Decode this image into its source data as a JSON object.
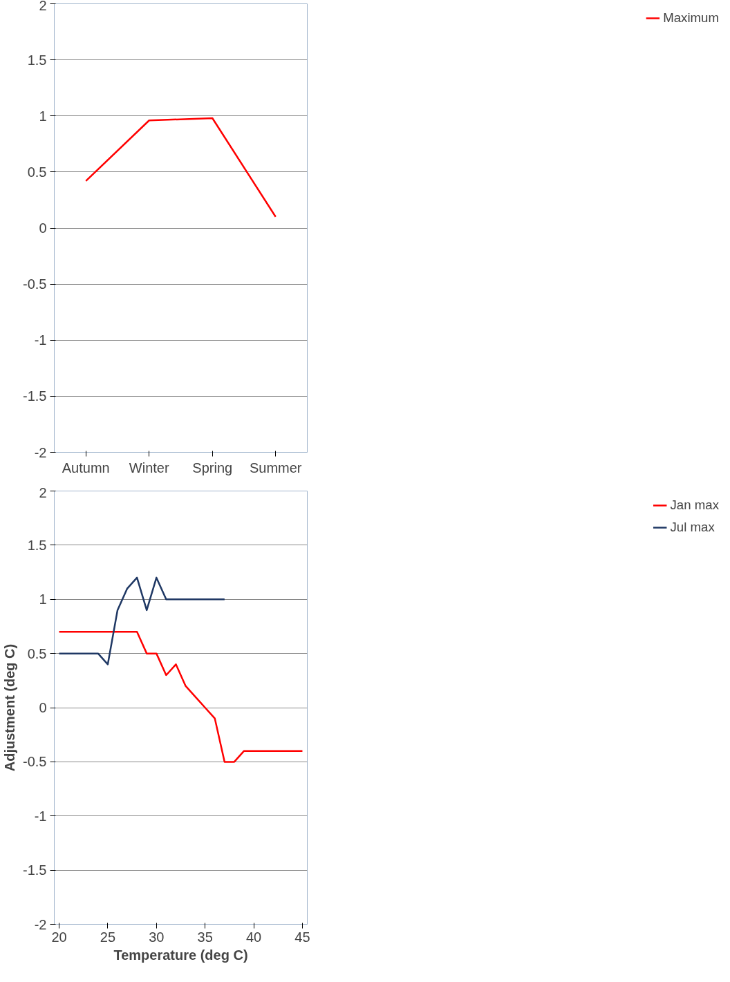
{
  "chart_data": [
    {
      "type": "line",
      "categories": [
        "Autumn",
        "Winter",
        "Spring",
        "Summer"
      ],
      "series": [
        {
          "name": "Maximum",
          "color": "#ff0000",
          "values": [
            0.42,
            0.96,
            0.98,
            0.1
          ]
        }
      ],
      "ylim": [
        -2,
        2
      ],
      "yticks": [
        -2,
        -1.5,
        -1,
        -0.5,
        0,
        0.5,
        1,
        1.5,
        2
      ],
      "grid": "y",
      "legend": "right",
      "marker": "none",
      "line_style": "solid"
    },
    {
      "type": "line",
      "xlabel": "Temperature (deg C)",
      "ylabel": "Adjustment (deg C)",
      "xlim": [
        19.5,
        45.5
      ],
      "xticks": [
        20,
        25,
        30,
        35,
        40,
        45
      ],
      "ylim": [
        -2,
        2
      ],
      "yticks": [
        -2,
        -1.5,
        -1,
        -0.5,
        0,
        0.5,
        1,
        1.5,
        2
      ],
      "series": [
        {
          "name": "Jan max",
          "color": "#ff0000",
          "x": [
            20,
            21,
            22,
            23,
            24,
            25,
            26,
            27,
            28,
            29,
            30,
            31,
            32,
            33,
            34,
            35,
            36,
            37,
            38,
            39,
            40,
            41,
            42,
            43,
            44,
            45
          ],
          "values": [
            0.7,
            0.7,
            0.7,
            0.7,
            0.7,
            0.7,
            0.7,
            0.7,
            0.7,
            0.5,
            0.5,
            0.3,
            0.4,
            0.2,
            0.1,
            0,
            -0.1,
            -0.5,
            -0.5,
            -0.4,
            -0.4,
            -0.4,
            -0.4,
            -0.4,
            -0.4,
            -0.4
          ]
        },
        {
          "name": "Jul max",
          "color": "#1f3864",
          "x": [
            20,
            21,
            22,
            23,
            24,
            25,
            26,
            27,
            28,
            29,
            30,
            31,
            32,
            33,
            34,
            35,
            36,
            37
          ],
          "values": [
            0.5,
            0.5,
            0.5,
            0.5,
            0.5,
            0.4,
            0.9,
            1.1,
            1.2,
            0.9,
            1.2,
            1,
            1,
            1,
            1,
            1,
            1,
            1
          ]
        }
      ],
      "grid": "y",
      "legend": "right",
      "marker": "none",
      "line_style": "solid"
    }
  ]
}
